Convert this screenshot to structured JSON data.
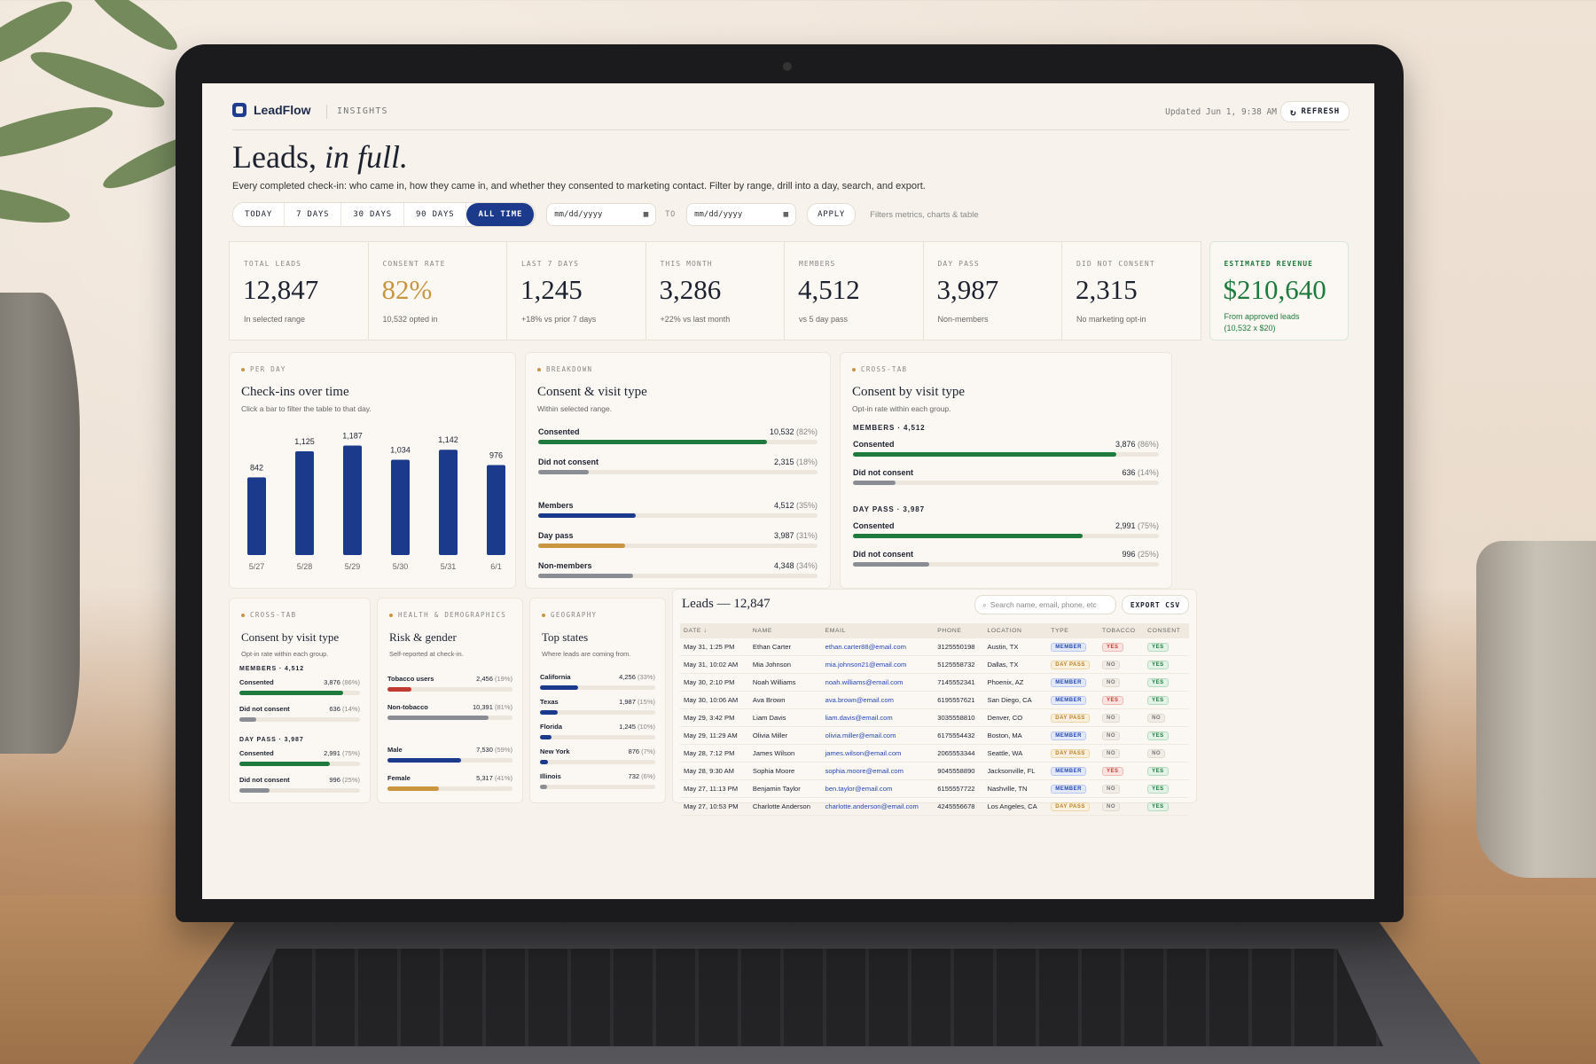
{
  "header": {
    "brand": "LeadFlow",
    "section": "INSIGHTS",
    "updated": "Updated Jun 1, 9:38 AM",
    "refresh_label": "REFRESH"
  },
  "page": {
    "title_main": "Leads,",
    "title_italic": "in full.",
    "subtitle": "Every completed check-in: who came in, how they came in, and whether they consented to marketing contact. Filter by range, drill into a day, search, and export."
  },
  "filters": {
    "ranges": [
      "TODAY",
      "7 DAYS",
      "30 DAYS",
      "90 DAYS",
      "ALL TIME"
    ],
    "active_range": "ALL TIME",
    "date_from_placeholder": "mm/dd/yyyy",
    "to_label": "TO",
    "date_to_placeholder": "mm/dd/yyyy",
    "apply_label": "APPLY",
    "hint": "Filters metrics, charts & table"
  },
  "kpis": [
    {
      "label": "TOTAL LEADS",
      "value": "12,847",
      "sub": "In selected range"
    },
    {
      "label": "CONSENT RATE",
      "value": "82%",
      "sub": "10,532 opted in"
    },
    {
      "label": "LAST 7 DAYS",
      "value": "1,245",
      "sub": "+18% vs prior 7 days"
    },
    {
      "label": "THIS MONTH",
      "value": "3,286",
      "sub": "+22% vs last month"
    },
    {
      "label": "MEMBERS",
      "value": "4,512",
      "sub": "vs 5 day pass"
    },
    {
      "label": "DAY PASS",
      "value": "3,987",
      "sub": "Non-members"
    },
    {
      "label": "DID NOT CONSENT",
      "value": "2,315",
      "sub": "No marketing opt-in"
    }
  ],
  "revenue": {
    "label": "ESTIMATED REVENUE",
    "value": "$210,640",
    "sub1": "From approved leads",
    "sub2": "(10,532 x $20)"
  },
  "colors": {
    "navy": "#1c3a8c",
    "gold": "#c9953f",
    "green": "#1f7a3e",
    "gray": "#8a8d94",
    "red": "#c23b32"
  },
  "checkins": {
    "eyebrow": "PER DAY",
    "title": "Check-ins over time",
    "desc": "Click a bar to filter the table to that day."
  },
  "chart_data": {
    "type": "bar",
    "categories": [
      "5/27",
      "5/28",
      "5/29",
      "5/30",
      "5/31",
      "6/1"
    ],
    "values": [
      842,
      1125,
      1187,
      1034,
      1142,
      976
    ],
    "title": "Check-ins over time",
    "ylim": [
      0,
      1250
    ]
  },
  "breakdown": {
    "eyebrow": "BREAKDOWN",
    "title": "Consent & visit type",
    "desc": "Within selected range.",
    "rows": [
      {
        "label": "Consented",
        "value": "10,532",
        "pct": "(82%)",
        "frac": 0.82,
        "color": "green"
      },
      {
        "label": "Did not consent",
        "value": "2,315",
        "pct": "(18%)",
        "frac": 0.18,
        "color": "gray"
      },
      {
        "label": "Members",
        "value": "4,512",
        "pct": "(35%)",
        "frac": 0.35,
        "color": "navy"
      },
      {
        "label": "Day pass",
        "value": "3,987",
        "pct": "(31%)",
        "frac": 0.31,
        "color": "gold"
      },
      {
        "label": "Non-members",
        "value": "4,348",
        "pct": "(34%)",
        "frac": 0.34,
        "color": "gray"
      }
    ]
  },
  "crosstab": {
    "eyebrow": "CROSS-TAB",
    "title": "Consent by visit type",
    "desc": "Opt-in rate within each group.",
    "groups": [
      {
        "name": "MEMBERS",
        "count": "4,512",
        "rows": [
          {
            "label": "Consented",
            "value": "3,876",
            "pct": "(86%)",
            "frac": 0.86,
            "color": "green"
          },
          {
            "label": "Did not consent",
            "value": "636",
            "pct": "(14%)",
            "frac": 0.14,
            "color": "gray"
          }
        ]
      },
      {
        "name": "DAY PASS",
        "count": "3,987",
        "rows": [
          {
            "label": "Consented",
            "value": "2,991",
            "pct": "(75%)",
            "frac": 0.75,
            "color": "green"
          },
          {
            "label": "Did not consent",
            "value": "996",
            "pct": "(25%)",
            "frac": 0.25,
            "color": "gray"
          }
        ]
      }
    ]
  },
  "health": {
    "eyebrow": "HEALTH & DEMOGRAPHICS",
    "title": "Risk & gender",
    "desc": "Self-reported at check-in.",
    "rows": [
      {
        "label": "Tobacco users",
        "value": "2,456",
        "pct": "(19%)",
        "frac": 0.19,
        "color": "red"
      },
      {
        "label": "Non-tobacco",
        "value": "10,391",
        "pct": "(81%)",
        "frac": 0.81,
        "color": "gray"
      },
      {
        "label": "Male",
        "value": "7,530",
        "pct": "(59%)",
        "frac": 0.59,
        "color": "navy"
      },
      {
        "label": "Female",
        "value": "5,317",
        "pct": "(41%)",
        "frac": 0.41,
        "color": "gold"
      }
    ]
  },
  "geo": {
    "eyebrow": "GEOGRAPHY",
    "title": "Top states",
    "desc": "Where leads are coming from.",
    "rows": [
      {
        "label": "California",
        "value": "4,256",
        "pct": "(33%)",
        "frac": 0.33,
        "color": "navy"
      },
      {
        "label": "Texas",
        "value": "1,987",
        "pct": "(15%)",
        "frac": 0.15,
        "color": "navy"
      },
      {
        "label": "Florida",
        "value": "1,245",
        "pct": "(10%)",
        "frac": 0.1,
        "color": "navy"
      },
      {
        "label": "New York",
        "value": "876",
        "pct": "(7%)",
        "frac": 0.07,
        "color": "navy"
      },
      {
        "label": "Illinois",
        "value": "732",
        "pct": "(6%)",
        "frac": 0.06,
        "color": "gray"
      }
    ]
  },
  "leads_table": {
    "title": "Leads — 12,847",
    "search_placeholder": "Search name, email, phone, etc",
    "export_label": "EXPORT CSV",
    "columns": [
      "DATE ↓",
      "NAME",
      "EMAIL",
      "PHONE",
      "LOCATION",
      "TYPE",
      "TOBACCO",
      "CONSENT"
    ],
    "rows": [
      {
        "date": "May 31, 1:25 PM",
        "name": "Ethan Carter",
        "email": "ethan.carter88@email.com",
        "phone": "3125550198",
        "location": "Austin, TX",
        "type": "MEMBER",
        "tobacco": "YES",
        "consent": "YES"
      },
      {
        "date": "May 31, 10:02 AM",
        "name": "Mia Johnson",
        "email": "mia.johnson21@email.com",
        "phone": "5125558732",
        "location": "Dallas, TX",
        "type": "DAY PASS",
        "tobacco": "NO",
        "consent": "YES"
      },
      {
        "date": "May 30, 2:10 PM",
        "name": "Noah Williams",
        "email": "noah.williams@email.com",
        "phone": "7145552341",
        "location": "Phoenix, AZ",
        "type": "MEMBER",
        "tobacco": "NO",
        "consent": "YES"
      },
      {
        "date": "May 30, 10:06 AM",
        "name": "Ava Brown",
        "email": "ava.brown@email.com",
        "phone": "6195557621",
        "location": "San Diego, CA",
        "type": "MEMBER",
        "tobacco": "YES",
        "consent": "YES"
      },
      {
        "date": "May 29, 3:42 PM",
        "name": "Liam Davis",
        "email": "liam.davis@email.com",
        "phone": "3035558810",
        "location": "Denver, CO",
        "type": "DAY PASS",
        "tobacco": "NO",
        "consent": "NO"
      },
      {
        "date": "May 29, 11:29 AM",
        "name": "Olivia Miller",
        "email": "olivia.miller@email.com",
        "phone": "6175554432",
        "location": "Boston, MA",
        "type": "MEMBER",
        "tobacco": "NO",
        "consent": "YES"
      },
      {
        "date": "May 28, 7:12 PM",
        "name": "James Wilson",
        "email": "james.wilson@email.com",
        "phone": "2065553344",
        "location": "Seattle, WA",
        "type": "DAY PASS",
        "tobacco": "NO",
        "consent": "NO"
      },
      {
        "date": "May 28, 9:30 AM",
        "name": "Sophia Moore",
        "email": "sophia.moore@email.com",
        "phone": "9045558890",
        "location": "Jacksonville, FL",
        "type": "MEMBER",
        "tobacco": "YES",
        "consent": "YES"
      },
      {
        "date": "May 27, 11:13 PM",
        "name": "Benjamin Taylor",
        "email": "ben.taylor@email.com",
        "phone": "6155557722",
        "location": "Nashville, TN",
        "type": "MEMBER",
        "tobacco": "NO",
        "consent": "YES"
      },
      {
        "date": "May 27, 10:53 PM",
        "name": "Charlotte Anderson",
        "email": "charlotte.anderson@email.com",
        "phone": "4245556678",
        "location": "Los Angeles, CA",
        "type": "DAY PASS",
        "tobacco": "NO",
        "consent": "YES"
      }
    ]
  }
}
